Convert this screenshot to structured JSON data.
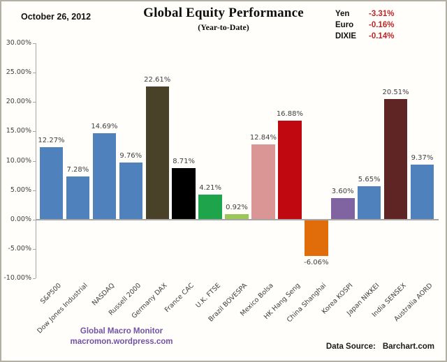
{
  "header": {
    "date": "October 26, 2012",
    "title": "Global Equity Performance",
    "subtitle": "(Year-to-Date)"
  },
  "fx_panel": {
    "rows": [
      {
        "label": "Yen",
        "value": "-3.31%"
      },
      {
        "label": "Euro",
        "value": "-0.16%"
      },
      {
        "label": "DIXIE",
        "value": "-0.14%"
      }
    ],
    "value_color": "#b92525"
  },
  "chart_data": {
    "type": "bar",
    "title": "Global Equity Performance",
    "subtitle": "(Year-to-Date)",
    "categories": [
      "S&P500",
      "Dow Jones Industrial",
      "NASDAQ",
      "Russell 2000",
      "Germany DAX",
      "France CAC",
      "U.K. FTSE",
      "Brazil BOVESPA",
      "Mexico Bolsa",
      "HK  Hang  Seng",
      "China Shanghai",
      "Korea KOSPI",
      "Japan NIKKEI",
      "India SENSEX",
      "Australia AORD"
    ],
    "values": [
      12.27,
      7.28,
      14.69,
      9.76,
      22.61,
      8.71,
      4.21,
      0.92,
      12.84,
      16.88,
      -6.06,
      3.6,
      5.65,
      20.51,
      9.37
    ],
    "labels": [
      "12.27%",
      "7.28%",
      "14.69%",
      "9.76%",
      "22.61%",
      "8.71%",
      "4.21%",
      "0.92%",
      "12.84%",
      "16.88%",
      "-6.06%",
      "3.60%",
      "5.65%",
      "20.51%",
      "9.37%"
    ],
    "colors": [
      "#4f81bd",
      "#4f81bd",
      "#4f81bd",
      "#4f81bd",
      "#4a4228",
      "#000000",
      "#1ea54c",
      "#9bc65a",
      "#d99694",
      "#c00811",
      "#e06c0a",
      "#8064a2",
      "#4f81bd",
      "#5f2524",
      "#4f81bd"
    ],
    "ylim": [
      -10,
      30
    ],
    "ytick_step": 5,
    "ytick_labels": [
      "30.00%",
      "25.00%",
      "20.00%",
      "15.00%",
      "10.00%",
      "5.00%",
      "0.00%",
      "-5.00%",
      "-10.00%"
    ],
    "grid": false,
    "legend_position": "none",
    "axis_color": "#a6a6a6"
  },
  "footer": {
    "brand_line1": "Global  Macro  Monitor",
    "brand_line2": "macromon.wordpress.com",
    "source_label": "Data Source:",
    "source_value": "Barchart.com"
  }
}
